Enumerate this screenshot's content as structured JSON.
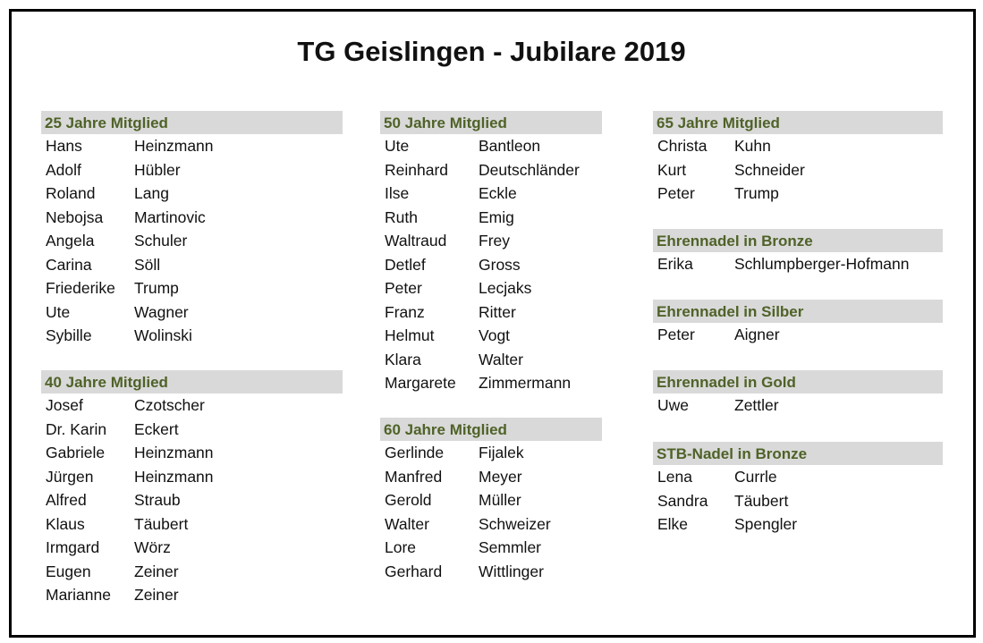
{
  "title": "TG Geislingen - Jubilare 2019",
  "sections": [
    {
      "heading": "25 Jahre Mitglied",
      "members": [
        {
          "first": "Hans",
          "last": "Heinzmann"
        },
        {
          "first": "Adolf",
          "last": "Hübler"
        },
        {
          "first": "Roland",
          "last": "Lang"
        },
        {
          "first": "Nebojsa",
          "last": "Martinovic"
        },
        {
          "first": "Angela",
          "last": "Schuler"
        },
        {
          "first": "Carina",
          "last": "Söll"
        },
        {
          "first": "Friederike",
          "last": "Trump"
        },
        {
          "first": "Ute",
          "last": "Wagner"
        },
        {
          "first": "Sybille",
          "last": "Wolinski"
        }
      ]
    },
    {
      "heading": "40 Jahre Mitglied",
      "members": [
        {
          "first": "Josef",
          "last": "Czotscher"
        },
        {
          "first": "Dr. Karin",
          "last": "Eckert"
        },
        {
          "first": "Gabriele",
          "last": "Heinzmann"
        },
        {
          "first": "Jürgen",
          "last": "Heinzmann"
        },
        {
          "first": "Alfred",
          "last": "Straub"
        },
        {
          "first": "Klaus",
          "last": "Täubert"
        },
        {
          "first": "Irmgard",
          "last": "Wörz"
        },
        {
          "first": "Eugen",
          "last": "Zeiner"
        },
        {
          "first": "Marianne",
          "last": "Zeiner"
        }
      ]
    },
    {
      "heading": "50 Jahre Mitglied",
      "members": [
        {
          "first": "Ute",
          "last": "Bantleon"
        },
        {
          "first": "Reinhard",
          "last": "Deutschländer"
        },
        {
          "first": "Ilse",
          "last": "Eckle"
        },
        {
          "first": "Ruth",
          "last": "Emig"
        },
        {
          "first": "Waltraud",
          "last": "Frey"
        },
        {
          "first": "Detlef",
          "last": "Gross"
        },
        {
          "first": "Peter",
          "last": "Lecjaks"
        },
        {
          "first": "Franz",
          "last": "Ritter"
        },
        {
          "first": "Helmut",
          "last": "Vogt"
        },
        {
          "first": "Klara",
          "last": "Walter"
        },
        {
          "first": "Margarete",
          "last": "Zimmermann"
        }
      ]
    },
    {
      "heading": "60 Jahre Mitglied",
      "members": [
        {
          "first": "Gerlinde",
          "last": "Fijalek"
        },
        {
          "first": "Manfred",
          "last": "Meyer"
        },
        {
          "first": "Gerold",
          "last": "Müller"
        },
        {
          "first": "Walter",
          "last": "Schweizer"
        },
        {
          "first": "Lore",
          "last": "Semmler"
        },
        {
          "first": "Gerhard",
          "last": "Wittlinger"
        }
      ]
    },
    {
      "heading": "65 Jahre Mitglied",
      "members": [
        {
          "first": "Christa",
          "last": "Kuhn"
        },
        {
          "first": "Kurt",
          "last": "Schneider"
        },
        {
          "first": "Peter",
          "last": "Trump"
        }
      ]
    },
    {
      "heading": "Ehrennadel in Bronze",
      "members": [
        {
          "first": "Erika",
          "last": "Schlumpberger-Hofmann"
        }
      ]
    },
    {
      "heading": "Ehrennadel in Silber",
      "members": [
        {
          "first": "Peter",
          "last": "Aigner"
        }
      ]
    },
    {
      "heading": "Ehrennadel in Gold",
      "members": [
        {
          "first": "Uwe",
          "last": "Zettler"
        }
      ]
    },
    {
      "heading": "STB-Nadel in Bronze",
      "members": [
        {
          "first": "Lena",
          "last": "Currle"
        },
        {
          "first": "Sandra",
          "last": "Täubert"
        },
        {
          "first": "Elke",
          "last": "Spengler"
        }
      ]
    }
  ]
}
